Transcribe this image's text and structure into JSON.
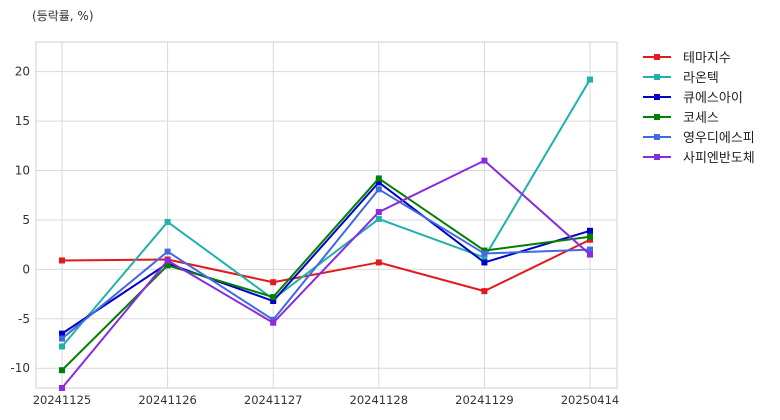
{
  "chart_data": {
    "type": "line",
    "title": "",
    "unit_note": "(등락률, %)",
    "xlabel": "",
    "ylabel": "",
    "categories": [
      "20241125",
      "20241126",
      "20241127",
      "20241128",
      "20241129",
      "20250414"
    ],
    "ylim": [
      -12,
      23
    ],
    "yticks": [
      -10,
      -5,
      0,
      5,
      10,
      15,
      20
    ],
    "grid": true,
    "legend_position": "right",
    "series": [
      {
        "name": "테마지수",
        "color": "#e31a1c",
        "values": [
          0.9,
          1.0,
          -1.3,
          0.7,
          -2.2,
          3.0
        ]
      },
      {
        "name": "라온텍",
        "color": "#20b2aa",
        "values": [
          -7.8,
          4.8,
          -3.0,
          5.1,
          1.2,
          19.2
        ]
      },
      {
        "name": "큐에스아이",
        "color": "#0000cd",
        "values": [
          -6.5,
          0.6,
          -3.2,
          8.8,
          0.7,
          3.9
        ]
      },
      {
        "name": "코세스",
        "color": "#008000",
        "values": [
          -10.2,
          0.4,
          -2.8,
          9.2,
          1.9,
          3.3
        ]
      },
      {
        "name": "영우디에스피",
        "color": "#4169e1",
        "values": [
          -7.0,
          1.8,
          -5.1,
          8.1,
          1.6,
          2.0
        ]
      },
      {
        "name": "사피엔반도체",
        "color": "#8a2be2",
        "values": [
          -12.0,
          0.9,
          -5.4,
          5.8,
          11.0,
          1.5
        ]
      }
    ]
  }
}
